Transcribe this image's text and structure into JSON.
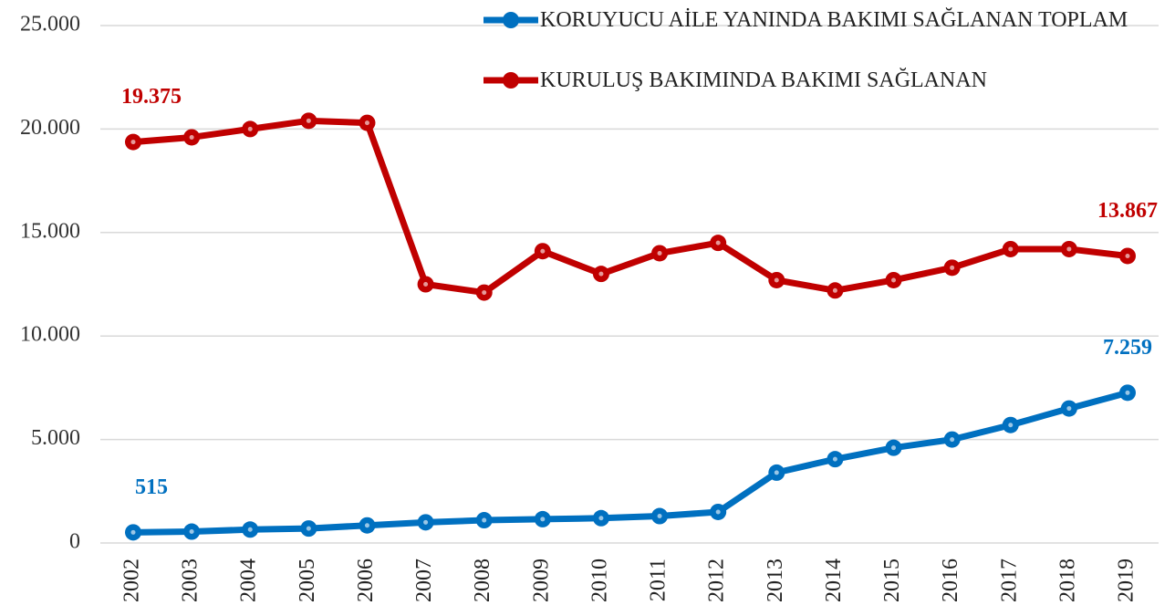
{
  "chart_data": {
    "type": "line",
    "categories": [
      "2002",
      "2003",
      "2004",
      "2005",
      "2006",
      "2007",
      "2008",
      "2009",
      "2010",
      "2011",
      "2012",
      "2013",
      "2014",
      "2015",
      "2016",
      "2017",
      "2018",
      "2019"
    ],
    "series": [
      {
        "name": "KORUYUCU AİLE YANINDA BAKIMI SAĞLANAN TOPLAM",
        "color": "#0070c0",
        "values": [
          515,
          550,
          650,
          700,
          850,
          1000,
          1100,
          1150,
          1200,
          1300,
          1500,
          3400,
          4050,
          4600,
          5000,
          5700,
          6500,
          7259
        ],
        "value_labels": [
          "515",
          null,
          null,
          null,
          null,
          null,
          null,
          null,
          null,
          null,
          null,
          null,
          null,
          null,
          null,
          null,
          null,
          "7.259"
        ]
      },
      {
        "name": "KURULUŞ BAKIMINDA BAKIMI SAĞLANAN",
        "color": "#c00000",
        "values": [
          19375,
          19600,
          20000,
          20400,
          20300,
          12500,
          12100,
          14100,
          13000,
          14000,
          14500,
          12700,
          12200,
          12700,
          13300,
          14200,
          14200,
          13867
        ],
        "value_labels": [
          "19.375",
          null,
          null,
          null,
          null,
          null,
          null,
          null,
          null,
          null,
          null,
          null,
          null,
          null,
          null,
          null,
          null,
          "13.867"
        ]
      }
    ],
    "ylim": [
      0,
      25000
    ],
    "yticks": [
      0,
      {
        "value": 5000,
        "label": "5.000"
      },
      {
        "value": 10000,
        "label": "10.000"
      },
      {
        "value": 15000,
        "label": "15.000"
      },
      {
        "value": 20000,
        "label": "20.000"
      },
      {
        "value": 25000,
        "label": "25.000"
      }
    ],
    "grid": true
  }
}
